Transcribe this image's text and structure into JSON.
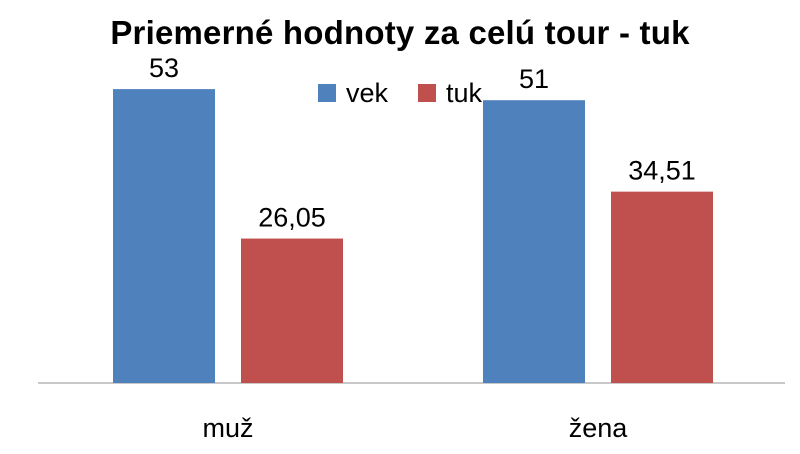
{
  "chart_data": {
    "type": "bar",
    "title": "Priemerné hodnoty za celú tour - tuk",
    "categories": [
      "muž",
      "žena"
    ],
    "series": [
      {
        "name": "vek",
        "values": [
          53,
          51
        ],
        "labels": [
          "53",
          "51"
        ],
        "color": "#4f81bd"
      },
      {
        "name": "tuk",
        "values": [
          26.05,
          34.51
        ],
        "labels": [
          "26,05",
          "34,51"
        ],
        "color": "#c0504d"
      }
    ],
    "ylim": [
      0,
      60
    ],
    "grid": false,
    "legend_position": "top"
  }
}
